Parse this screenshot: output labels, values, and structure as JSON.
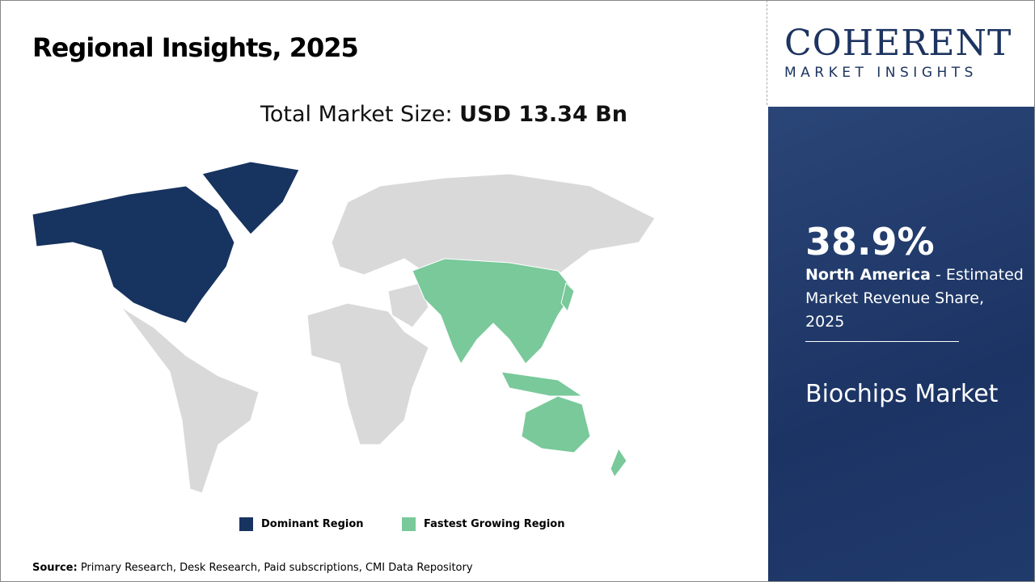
{
  "title": "Regional Insights, 2025",
  "total": {
    "label": "Total Market Size: ",
    "value": "USD 13.34 Bn"
  },
  "legend": [
    {
      "label": "Dominant Region",
      "color": "#17335f"
    },
    {
      "label": "Fastest Growing Region",
      "color": "#79c99a"
    }
  ],
  "map": {
    "dominant_region": "North America",
    "fastest_growing_region": "Asia Pacific",
    "base_color": "#d9d9d9"
  },
  "source": {
    "label": "Source:",
    "text": " Primary Research, Desk Research, Paid subscriptions, CMI Data Repository"
  },
  "logo": {
    "top": "COHERENT",
    "bottom": "MARKET INSIGHTS"
  },
  "panel": {
    "percent": "38.9%",
    "region": "North America",
    "desc": " - Estimated Market Revenue Share, 2025",
    "market": "Biochips Market"
  }
}
